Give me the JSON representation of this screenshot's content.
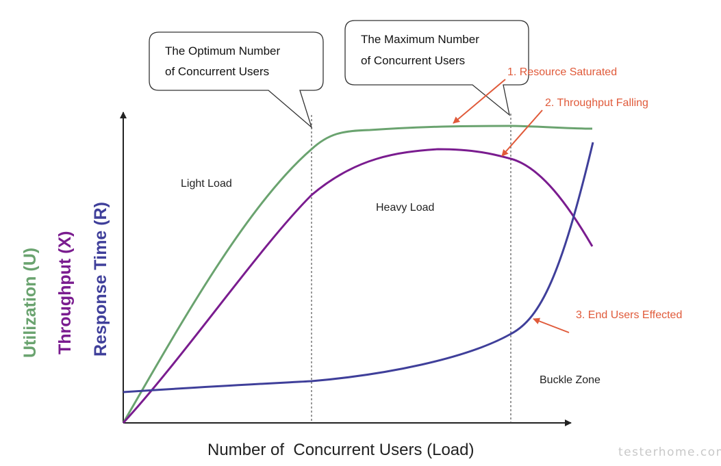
{
  "colors": {
    "utilization": "#6aa36f",
    "throughput": "#7a1c8f",
    "response_time": "#3f3f9a",
    "annotation": "#e05a3a",
    "axis": "#222222",
    "marker": "#555555"
  },
  "axes": {
    "x_label": "Number of  Concurrent Users (Load)",
    "y_labels": [
      {
        "text": "Utilization (U)",
        "series": "utilization"
      },
      {
        "text": "Throughput (X)",
        "series": "throughput"
      },
      {
        "text": "Response Time (R)",
        "series": "response_time"
      }
    ]
  },
  "callouts": {
    "optimum": {
      "lines": [
        "The Optimum Number",
        "of Concurrent Users"
      ]
    },
    "maximum": {
      "lines": [
        "The  Maximum  Number",
        "of Concurrent Users"
      ]
    }
  },
  "zones": {
    "light": "Light Load",
    "heavy": "Heavy Load",
    "buckle": "Buckle Zone"
  },
  "annotations": [
    {
      "text": "1. Resource Saturated"
    },
    {
      "text": "2. Throughput Falling"
    },
    {
      "text": "3. End Users Effected"
    }
  ],
  "watermark": "testerhome.com"
}
